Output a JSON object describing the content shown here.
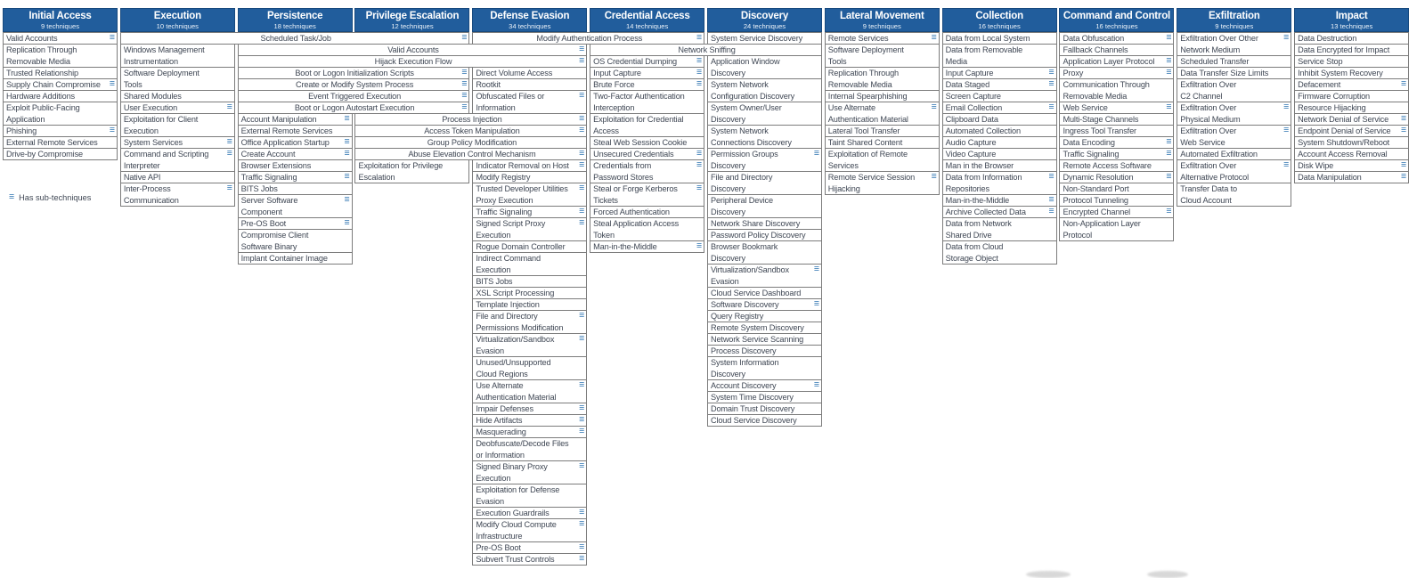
{
  "legend": {
    "icon": "≡",
    "label": "Has sub-techniques"
  },
  "colors": {
    "header_bg": "#215d9c",
    "header_text": "#ffffff",
    "cell_border": "#7c7c7c",
    "cell_text": "#3f4754",
    "subtechnique_icon": "#2c72b0"
  },
  "matrix": {
    "tactics": [
      {
        "name": "Initial Access",
        "count": "9 techniques",
        "cells": [
          {
            "t": "Valid Accounts",
            "s": 1,
            "l": 1
          },
          {
            "t": "Replication Through\nRemovable Media",
            "l": 2
          },
          {
            "t": "Trusted Relationship",
            "l": 1
          },
          {
            "t": "Supply Chain Compromise",
            "s": 1,
            "l": 1
          },
          {
            "t": "Hardware Additions",
            "l": 1
          },
          {
            "t": "Exploit Public-Facing\nApplication",
            "l": 2
          },
          {
            "t": "Phishing",
            "s": 1,
            "l": 1
          },
          {
            "t": "External Remote Services",
            "l": 1
          },
          {
            "t": "Drive-by Compromise",
            "l": 1
          }
        ]
      },
      {
        "name": "Execution",
        "count": "10 techniques",
        "cells": [
          {
            "t": "Scheduled Task/Job",
            "s": 1,
            "l": 1,
            "span": 3
          },
          {
            "t": "Windows Management\nInstrumentation",
            "l": 2
          },
          {
            "t": "Software Deployment\nTools",
            "l": 2
          },
          {
            "t": "Shared Modules",
            "l": 1
          },
          {
            "t": "User Execution",
            "s": 1,
            "l": 1
          },
          {
            "t": "Exploitation for Client\nExecution",
            "l": 2
          },
          {
            "t": "System Services",
            "s": 1,
            "l": 1
          },
          {
            "t": "Command and Scripting\nInterpreter",
            "s": 1,
            "l": 2
          },
          {
            "t": "Native API",
            "l": 1
          },
          {
            "t": "Inter-Process\nCommunication",
            "s": 1,
            "l": 2
          }
        ]
      },
      {
        "name": "Persistence",
        "count": "18 techniques",
        "cells": [
          {
            "sp": 1
          },
          {
            "t": "Valid Accounts",
            "s": 1,
            "l": 1,
            "span": 3
          },
          {
            "t": "Hijack Execution Flow",
            "s": 1,
            "l": 1,
            "span": 3
          },
          {
            "t": "Boot or Logon Initialization Scripts",
            "s": 1,
            "l": 1,
            "span": 2
          },
          {
            "t": "Create or Modify System Process",
            "s": 1,
            "l": 1,
            "span": 2
          },
          {
            "t": "Event Triggered Execution",
            "s": 1,
            "l": 1,
            "span": 2
          },
          {
            "t": "Boot or Logon Autostart Execution",
            "s": 1,
            "l": 1,
            "span": 2
          },
          {
            "t": "Account Manipulation",
            "s": 1,
            "l": 1
          },
          {
            "t": "External Remote Services",
            "l": 1
          },
          {
            "t": "Office Application Startup",
            "s": 1,
            "l": 1
          },
          {
            "t": "Create Account",
            "s": 1,
            "l": 1
          },
          {
            "t": "Browser Extensions",
            "l": 1
          },
          {
            "t": "Traffic Signaling",
            "s": 1,
            "l": 1
          },
          {
            "t": "BITS Jobs",
            "l": 1
          },
          {
            "t": "Server Software\nComponent",
            "s": 1,
            "l": 2
          },
          {
            "t": "Pre-OS Boot",
            "s": 1,
            "l": 1
          },
          {
            "t": "Compromise Client\nSoftware Binary",
            "l": 2
          },
          {
            "t": "Implant Container Image",
            "l": 1
          }
        ]
      },
      {
        "name": "Privilege Escalation",
        "count": "12 techniques",
        "cells": [
          {
            "sp": 7
          },
          {
            "t": "Process Injection",
            "s": 1,
            "l": 1,
            "span": 2
          },
          {
            "t": "Access Token Manipulation",
            "s": 1,
            "l": 1,
            "span": 2
          },
          {
            "t": "Group Policy Modification",
            "l": 1,
            "span": 2
          },
          {
            "t": "Abuse Elevation Control Mechanism",
            "s": 1,
            "l": 1,
            "span": 2
          },
          {
            "t": "Exploitation for Privilege\nEscalation",
            "l": 2
          }
        ]
      },
      {
        "name": "Defense Evasion",
        "count": "34 techniques",
        "cells": [
          {
            "t": "Modify Authentication Process",
            "s": 1,
            "l": 1,
            "span": 2
          },
          {
            "sp": 2
          },
          {
            "t": "Direct Volume Access",
            "l": 1
          },
          {
            "t": "Rootkit",
            "l": 1
          },
          {
            "t": "Obfuscated Files or\nInformation",
            "s": 1,
            "l": 2
          },
          {
            "sp": 4
          },
          {
            "t": "Indicator Removal on Host",
            "s": 1,
            "l": 1
          },
          {
            "t": "Modify Registry",
            "l": 1
          },
          {
            "t": "Trusted Developer Utilities\nProxy Execution",
            "s": 1,
            "l": 2
          },
          {
            "t": "Traffic Signaling",
            "s": 1,
            "l": 1
          },
          {
            "t": "Signed Script Proxy\nExecution",
            "s": 1,
            "l": 2
          },
          {
            "t": "Rogue Domain Controller",
            "l": 1
          },
          {
            "t": "Indirect Command\nExecution",
            "l": 2
          },
          {
            "t": "BITS Jobs",
            "l": 1
          },
          {
            "t": "XSL Script Processing",
            "l": 1
          },
          {
            "t": "Template Injection",
            "l": 1
          },
          {
            "t": "File and Directory\nPermissions Modification",
            "s": 1,
            "l": 2
          },
          {
            "t": "Virtualization/Sandbox\nEvasion",
            "s": 1,
            "l": 2
          },
          {
            "t": "Unused/Unsupported\nCloud Regions",
            "l": 2
          },
          {
            "t": "Use Alternate\nAuthentication Material",
            "s": 1,
            "l": 2
          },
          {
            "t": "Impair Defenses",
            "s": 1,
            "l": 1
          },
          {
            "t": "Hide Artifacts",
            "s": 1,
            "l": 1
          },
          {
            "t": "Masquerading",
            "s": 1,
            "l": 1
          },
          {
            "t": "Deobfuscate/Decode Files\nor Information",
            "l": 2
          },
          {
            "t": "Signed Binary Proxy\nExecution",
            "s": 1,
            "l": 2
          },
          {
            "t": "Exploitation for Defense\nEvasion",
            "l": 2
          },
          {
            "t": "Execution Guardrails",
            "s": 1,
            "l": 1
          },
          {
            "t": "Modify Cloud Compute\nInfrastructure",
            "s": 1,
            "l": 2
          },
          {
            "t": "Pre-OS Boot",
            "s": 1,
            "l": 1
          },
          {
            "t": "Subvert Trust Controls",
            "s": 1,
            "l": 1
          }
        ]
      },
      {
        "name": "Credential Access",
        "count": "14 techniques",
        "cells": [
          {
            "sp": 1
          },
          {
            "t": "Network Sniffing",
            "l": 1,
            "span": 2
          },
          {
            "t": "OS Credential Dumping",
            "s": 1,
            "l": 1
          },
          {
            "t": "Input Capture",
            "s": 1,
            "l": 1
          },
          {
            "t": "Brute Force",
            "s": 1,
            "l": 1
          },
          {
            "t": "Two-Factor Authentication\nInterception",
            "l": 2
          },
          {
            "t": "Exploitation for Credential\nAccess",
            "l": 2
          },
          {
            "t": "Steal Web Session Cookie",
            "l": 1
          },
          {
            "t": "Unsecured Credentials",
            "s": 1,
            "l": 1
          },
          {
            "t": "Credentials from\nPassword Stores",
            "s": 1,
            "l": 2
          },
          {
            "t": "Steal or Forge Kerberos\nTickets",
            "s": 1,
            "l": 2
          },
          {
            "t": "Forced Authentication",
            "l": 1
          },
          {
            "t": "Steal Application Access\nToken",
            "l": 2
          },
          {
            "t": "Man-in-the-Middle",
            "s": 1,
            "l": 1
          }
        ]
      },
      {
        "name": "Discovery",
        "count": "24 techniques",
        "cells": [
          {
            "t": "System Service Discovery",
            "l": 1
          },
          {
            "sp": 1
          },
          {
            "t": "Application Window\nDiscovery",
            "l": 2
          },
          {
            "t": "System Network\nConfiguration Discovery",
            "l": 2
          },
          {
            "t": "System Owner/User\nDiscovery",
            "l": 2
          },
          {
            "t": "System Network\nConnections Discovery",
            "l": 2
          },
          {
            "t": "Permission Groups\nDiscovery",
            "s": 1,
            "l": 2
          },
          {
            "t": "File and Directory\nDiscovery",
            "l": 2
          },
          {
            "t": "Peripheral Device\nDiscovery",
            "l": 2
          },
          {
            "t": "Network Share Discovery",
            "l": 1
          },
          {
            "t": "Password Policy Discovery",
            "l": 1
          },
          {
            "t": "Browser Bookmark\nDiscovery",
            "l": 2
          },
          {
            "t": "Virtualization/Sandbox\nEvasion",
            "s": 1,
            "l": 2
          },
          {
            "t": "Cloud Service Dashboard",
            "l": 1
          },
          {
            "t": "Software Discovery",
            "s": 1,
            "l": 1
          },
          {
            "t": "Query Registry",
            "l": 1
          },
          {
            "t": "Remote System Discovery",
            "l": 1
          },
          {
            "t": "Network Service Scanning",
            "l": 1
          },
          {
            "t": "Process Discovery",
            "l": 1
          },
          {
            "t": "System Information\nDiscovery",
            "l": 2
          },
          {
            "t": "Account Discovery",
            "s": 1,
            "l": 1
          },
          {
            "t": "System Time Discovery",
            "l": 1
          },
          {
            "t": "Domain Trust Discovery",
            "l": 1
          },
          {
            "t": "Cloud Service Discovery",
            "l": 1
          }
        ]
      },
      {
        "name": "Lateral Movement",
        "count": "9 techniques",
        "cells": [
          {
            "t": "Remote Services",
            "s": 1,
            "l": 1
          },
          {
            "t": "Software Deployment\nTools",
            "l": 2
          },
          {
            "t": "Replication Through\nRemovable Media",
            "l": 2
          },
          {
            "t": "Internal Spearphishing",
            "l": 1
          },
          {
            "t": "Use Alternate\nAuthentication Material",
            "s": 1,
            "l": 2
          },
          {
            "t": "Lateral Tool Transfer",
            "l": 1
          },
          {
            "t": "Taint Shared Content",
            "l": 1
          },
          {
            "t": "Exploitation of Remote\nServices",
            "l": 2
          },
          {
            "t": "Remote Service Session\nHijacking",
            "s": 1,
            "l": 2
          }
        ]
      },
      {
        "name": "Collection",
        "count": "16 techniques",
        "cells": [
          {
            "t": "Data from Local System",
            "l": 1
          },
          {
            "t": "Data from Removable\nMedia",
            "l": 2
          },
          {
            "t": "Input Capture",
            "s": 1,
            "l": 1
          },
          {
            "t": "Data Staged",
            "s": 1,
            "l": 1
          },
          {
            "t": "Screen Capture",
            "l": 1
          },
          {
            "t": "Email Collection",
            "s": 1,
            "l": 1
          },
          {
            "t": "Clipboard Data",
            "l": 1
          },
          {
            "t": "Automated Collection",
            "l": 1
          },
          {
            "t": "Audio Capture",
            "l": 1
          },
          {
            "t": "Video Capture",
            "l": 1
          },
          {
            "t": "Man in the Browser",
            "l": 1
          },
          {
            "t": "Data from Information\nRepositories",
            "s": 1,
            "l": 2
          },
          {
            "t": "Man-in-the-Middle",
            "s": 1,
            "l": 1
          },
          {
            "t": "Archive Collected Data",
            "s": 1,
            "l": 1
          },
          {
            "t": "Data from Network\nShared Drive",
            "l": 2
          },
          {
            "t": "Data from Cloud\nStorage Object",
            "l": 2
          }
        ]
      },
      {
        "name": "Command and Control",
        "count": "16 techniques",
        "cells": [
          {
            "t": "Data Obfuscation",
            "s": 1,
            "l": 1
          },
          {
            "t": "Fallback Channels",
            "l": 1
          },
          {
            "t": "Application Layer Protocol",
            "s": 1,
            "l": 1
          },
          {
            "t": "Proxy",
            "s": 1,
            "l": 1
          },
          {
            "t": "Communication Through\nRemovable Media",
            "l": 2
          },
          {
            "t": "Web Service",
            "s": 1,
            "l": 1
          },
          {
            "t": "Multi-Stage Channels",
            "l": 1
          },
          {
            "t": "Ingress Tool Transfer",
            "l": 1
          },
          {
            "t": "Data Encoding",
            "s": 1,
            "l": 1
          },
          {
            "t": "Traffic Signaling",
            "s": 1,
            "l": 1
          },
          {
            "t": "Remote Access Software",
            "l": 1
          },
          {
            "t": "Dynamic Resolution",
            "s": 1,
            "l": 1
          },
          {
            "t": "Non-Standard Port",
            "l": 1
          },
          {
            "t": "Protocol Tunneling",
            "l": 1
          },
          {
            "t": "Encrypted Channel",
            "s": 1,
            "l": 1
          },
          {
            "t": "Non-Application Layer\nProtocol",
            "l": 2
          }
        ]
      },
      {
        "name": "Exfiltration",
        "count": "9 techniques",
        "cells": [
          {
            "t": "Exfiltration Over Other\nNetwork Medium",
            "s": 1,
            "l": 2
          },
          {
            "t": "Scheduled Transfer",
            "l": 1
          },
          {
            "t": "Data Transfer Size Limits",
            "l": 1
          },
          {
            "t": "Exfiltration Over\nC2 Channel",
            "l": 2
          },
          {
            "t": "Exfiltration Over\nPhysical Medium",
            "s": 1,
            "l": 2
          },
          {
            "t": "Exfiltration Over\nWeb Service",
            "s": 1,
            "l": 2
          },
          {
            "t": "Automated Exfiltration",
            "l": 1
          },
          {
            "t": "Exfiltration Over\nAlternative Protocol",
            "s": 1,
            "l": 2
          },
          {
            "t": "Transfer Data to\nCloud Account",
            "l": 2
          }
        ]
      },
      {
        "name": "Impact",
        "count": "13 techniques",
        "cells": [
          {
            "t": "Data Destruction",
            "l": 1
          },
          {
            "t": "Data Encrypted for Impact",
            "l": 1
          },
          {
            "t": "Service Stop",
            "l": 1
          },
          {
            "t": "Inhibit System Recovery",
            "l": 1
          },
          {
            "t": "Defacement",
            "s": 1,
            "l": 1
          },
          {
            "t": "Firmware Corruption",
            "l": 1
          },
          {
            "t": "Resource Hijacking",
            "l": 1
          },
          {
            "t": "Network Denial of Service",
            "s": 1,
            "l": 1
          },
          {
            "t": "Endpoint Denial of Service",
            "s": 1,
            "l": 1
          },
          {
            "t": "System Shutdown/Reboot",
            "l": 1
          },
          {
            "t": "Account Access Removal",
            "l": 1
          },
          {
            "t": "Disk Wipe",
            "s": 1,
            "l": 1
          },
          {
            "t": "Data Manipulation",
            "s": 1,
            "l": 1
          }
        ]
      }
    ]
  }
}
